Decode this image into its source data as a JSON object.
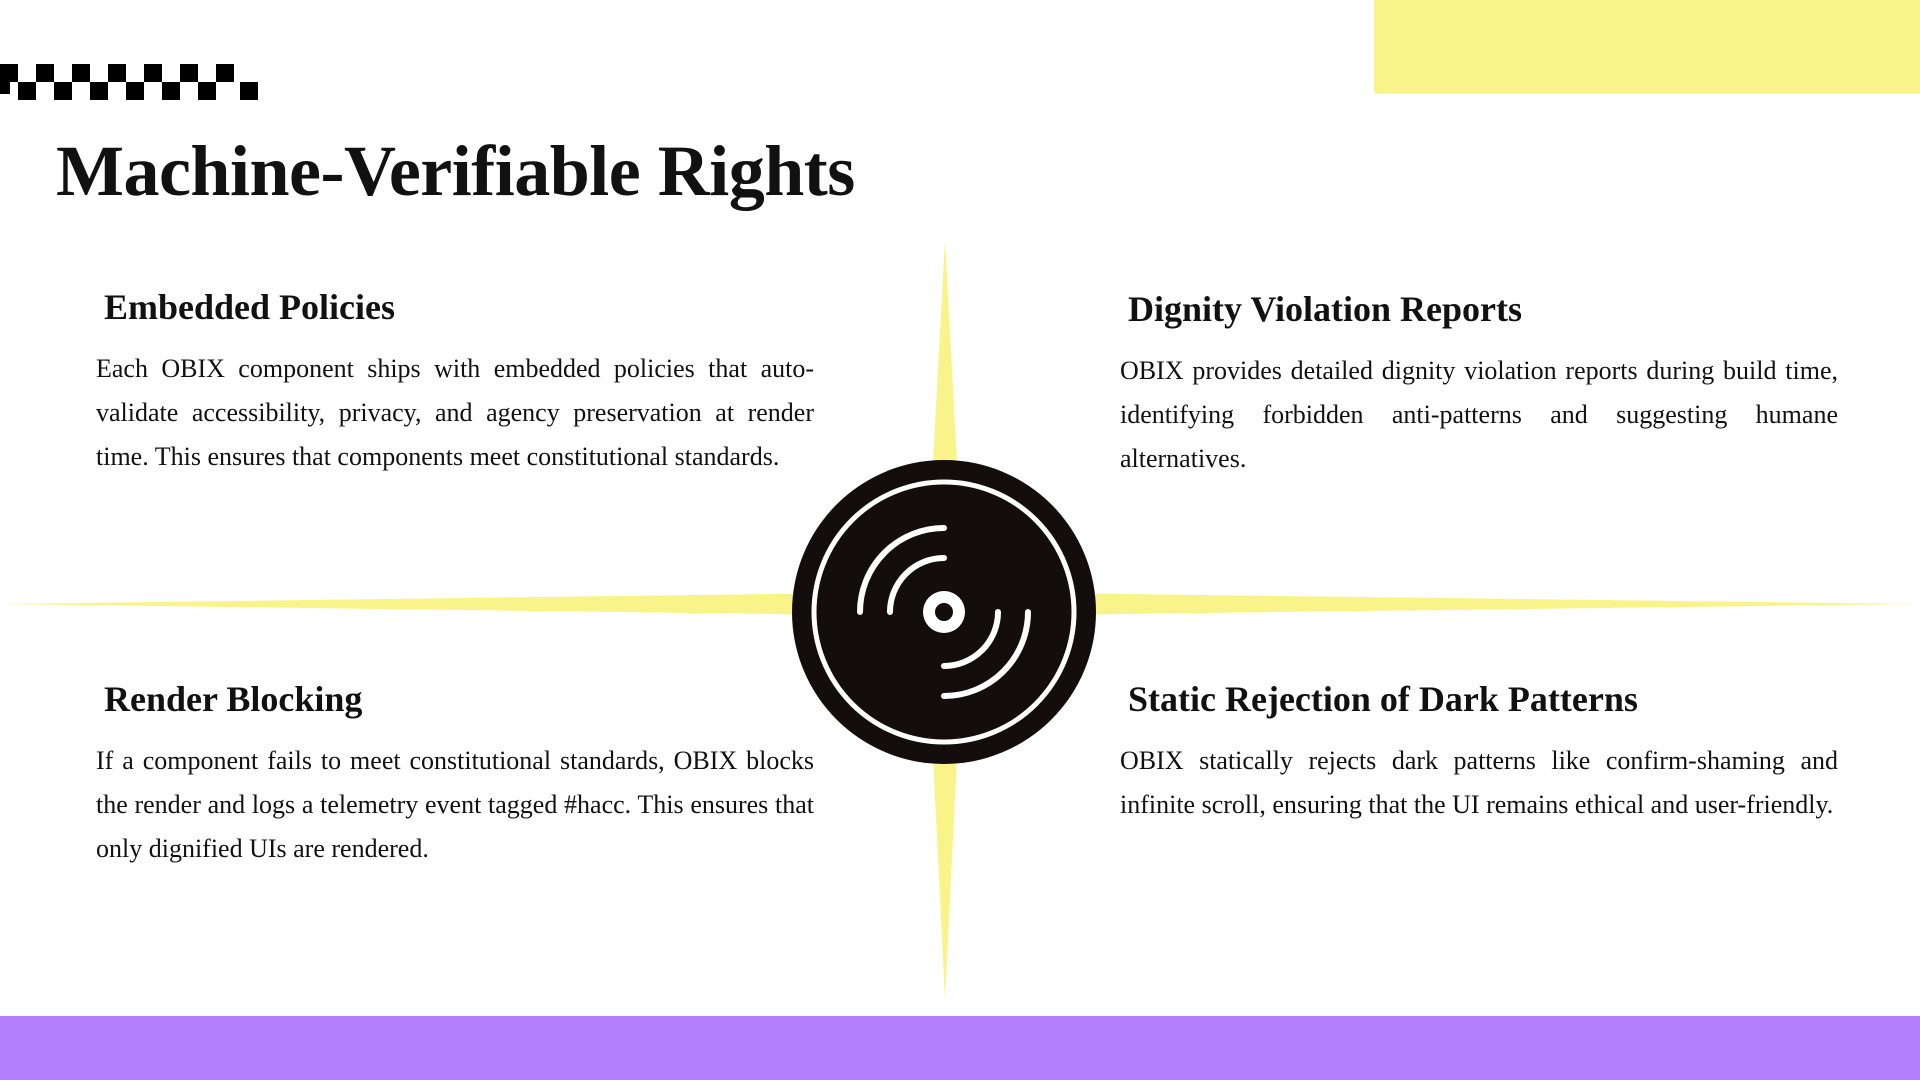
{
  "colors": {
    "accent_yellow": "#f9f48a",
    "accent_purple": "#b47ffe",
    "ink": "#111111",
    "disc": "#140d0e"
  },
  "title": "Machine-Verifiable Rights",
  "sections": [
    {
      "heading": "Embedded Policies",
      "body": "Each OBIX component ships with embedded policies that auto-validate accessibility, privacy, and agency preservation at render time. This ensures that components meet constitutional standards."
    },
    {
      "heading": "Dignity Violation Reports",
      "body": "OBIX provides detailed dignity violation reports during build time, identifying forbidden anti-patterns and suggesting humane alternatives."
    },
    {
      "heading": "Render Blocking",
      "body": "If a component fails to meet constitutional standards, OBIX blocks the render and logs a telemetry event tagged #hacc. This ensures that only dignified UIs are rendered."
    },
    {
      "heading": "Static Rejection of Dark Patterns",
      "body": "OBIX statically rejects dark patterns like confirm-shaming and infinite scroll, ensuring that the UI remains ethical and user-friendly."
    }
  ],
  "icons": {
    "center": "vinyl-record-icon",
    "decoration": "checkerboard-pattern"
  }
}
